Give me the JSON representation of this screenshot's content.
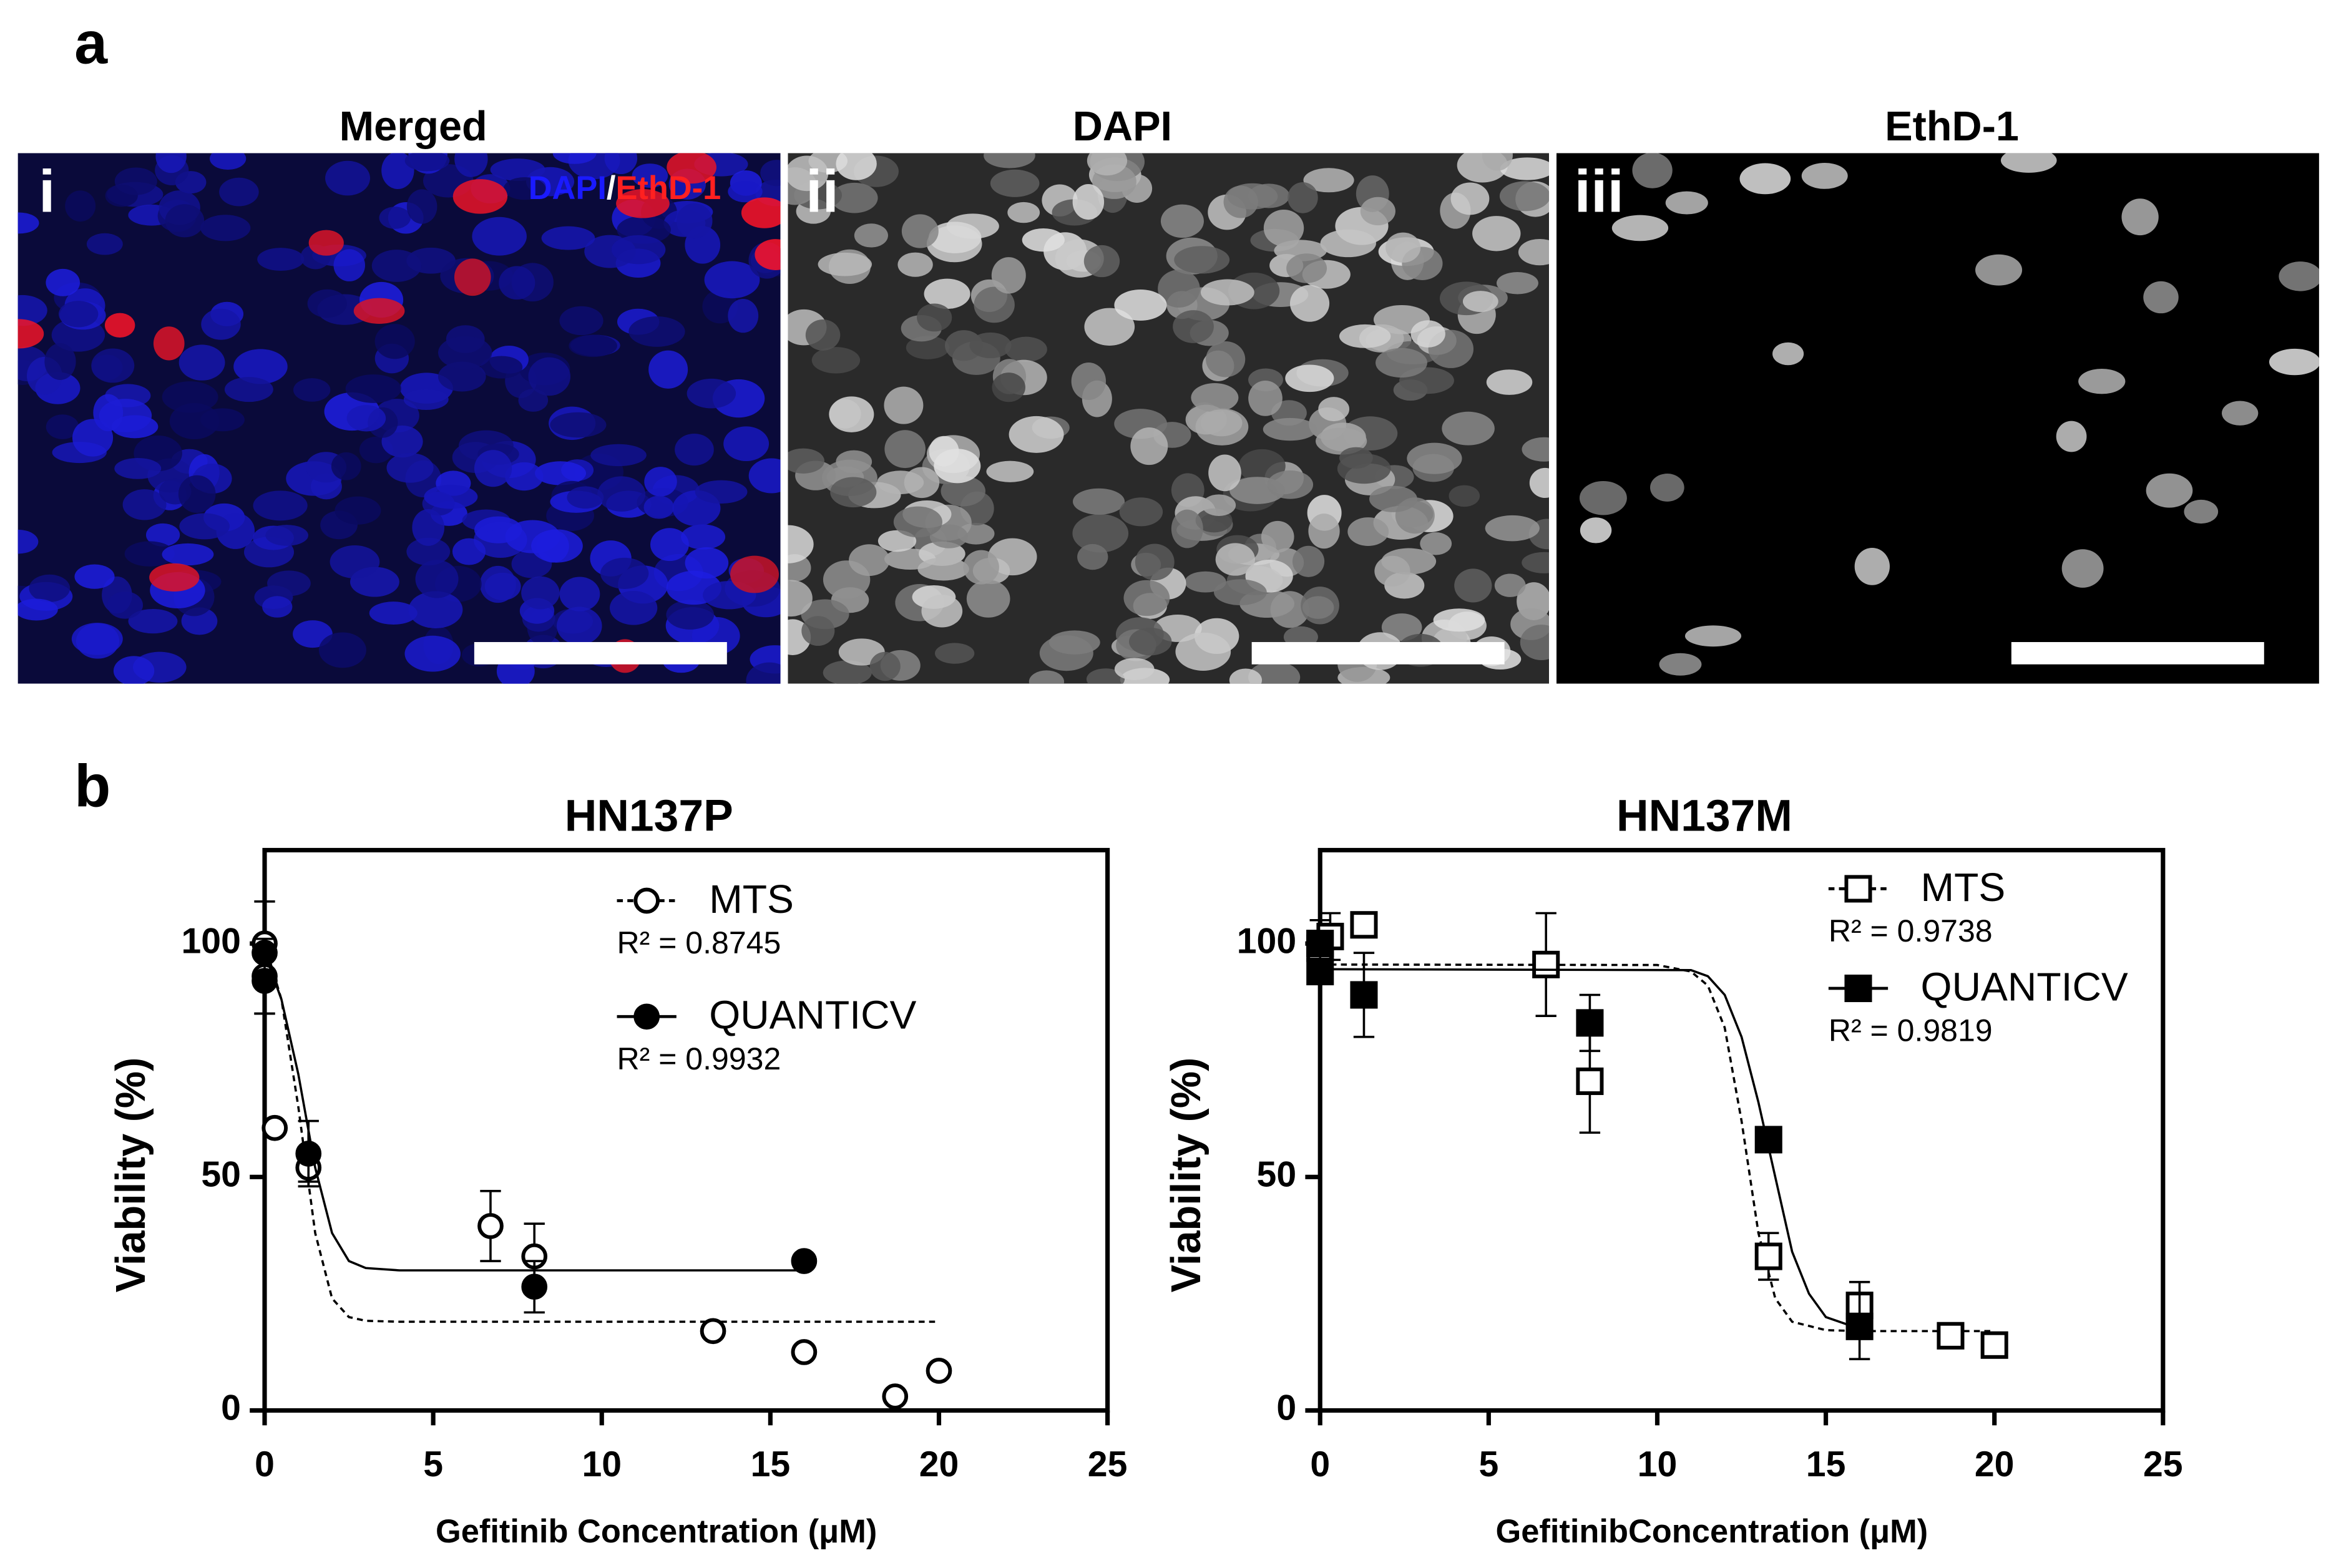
{
  "panel_a": {
    "label": "a",
    "panels": [
      {
        "title": "Merged",
        "tag": "i",
        "overlay": [
          "DAPI",
          "/",
          "EthD-1"
        ]
      },
      {
        "title": "DAPI",
        "tag": "ii"
      },
      {
        "title": "EthD-1",
        "tag": "iii"
      }
    ]
  },
  "panel_b": {
    "label": "b"
  },
  "chart_data": [
    {
      "type": "scatter",
      "title": "HN137P",
      "x_label": "Gefitinib Concentration (μM)",
      "y_label": "Viability (%)",
      "xlim": [
        0,
        25
      ],
      "xticks": [
        0,
        5,
        10,
        15,
        20,
        25
      ],
      "ylim": [
        0,
        120
      ],
      "yticks": [
        0,
        50,
        100
      ],
      "grid": false,
      "legend": "top",
      "series": [
        {
          "name": "MTS",
          "r2": "R² = 0.8745",
          "color": "#000000",
          "marker": "circle",
          "filled": false,
          "line": "dashed",
          "x": [
            0,
            0,
            0.3,
            1.3,
            6.7,
            8,
            13.3,
            16,
            18.7,
            20
          ],
          "values": [
            100,
            93,
            60.5,
            52,
            39.5,
            33,
            17,
            12.5,
            3,
            8.5
          ],
          "errors": [
            9,
            8,
            null,
            3,
            7.5,
            7,
            null,
            null,
            null,
            null
          ],
          "fit": {
            "x": [
              0,
              0.5,
              1,
              1.5,
              2,
              2.5,
              3,
              4,
              6,
              10,
              20
            ],
            "values": [
              100,
              88,
              65,
              38,
              24,
              20,
              19.2,
              19,
              19,
              19,
              19
            ]
          }
        },
        {
          "name": "QUANTICV",
          "r2": "R² = 0.9932",
          "color": "#000000",
          "marker": "circle",
          "filled": true,
          "line": "solid",
          "x": [
            0,
            0,
            1.3,
            8,
            16
          ],
          "values": [
            98,
            92,
            55,
            26.5,
            32
          ],
          "errors": [
            null,
            7,
            7,
            5.5,
            null
          ],
          "fit": {
            "x": [
              0,
              0.5,
              1,
              1.5,
              2,
              2.5,
              3,
              4,
              8,
              16
            ],
            "values": [
              98,
              88,
              72,
              52,
              38,
              32,
              30.5,
              30,
              30,
              30
            ]
          }
        }
      ]
    },
    {
      "type": "scatter",
      "title": "HN137M",
      "x_label": "GefitinibConcentration (μM)",
      "y_label": "Viability (%)",
      "xlim": [
        0,
        25
      ],
      "xticks": [
        0,
        5,
        10,
        15,
        20,
        25
      ],
      "ylim": [
        0,
        120
      ],
      "yticks": [
        0,
        50,
        100
      ],
      "grid": false,
      "legend": "top",
      "series": [
        {
          "name": "MTS",
          "r2": "R² = 0.9738",
          "color": "#000000",
          "marker": "square",
          "filled": false,
          "line": "dashed",
          "x": [
            0,
            0,
            0.3,
            1.3,
            6.7,
            8,
            13.3,
            16,
            18.7,
            20
          ],
          "values": [
            99,
            100,
            101.5,
            104,
            95.5,
            70.5,
            33,
            22.5,
            16,
            14
          ],
          "errors": [
            null,
            5,
            5,
            null,
            11,
            11,
            5,
            5,
            null,
            null
          ],
          "fit": {
            "x": [
              0,
              10,
              11,
              11.5,
              12,
              12.5,
              13,
              13.5,
              14,
              15,
              16,
              20
            ],
            "values": [
              95.5,
              95.4,
              94,
              91,
              82,
              62,
              38,
              24,
              19,
              17.2,
              17,
              17
            ]
          }
        },
        {
          "name": "QUANTICV",
          "r2": "R² = 0.9819",
          "color": "#000000",
          "marker": "square",
          "filled": true,
          "line": "solid",
          "x": [
            0,
            0,
            1.3,
            8,
            13.3,
            16
          ],
          "values": [
            94,
            100,
            89,
            83,
            58,
            18
          ],
          "errors": [
            null,
            null,
            9,
            6,
            null,
            7
          ],
          "fit": {
            "x": [
              0,
              11,
              11.5,
              12,
              12.5,
              13,
              13.5,
              14,
              14.5,
              15,
              16
            ],
            "values": [
              94.5,
              94.3,
              93,
              89,
              80,
              66,
              50,
              34,
              25,
              20,
              17.5
            ]
          }
        }
      ]
    }
  ]
}
